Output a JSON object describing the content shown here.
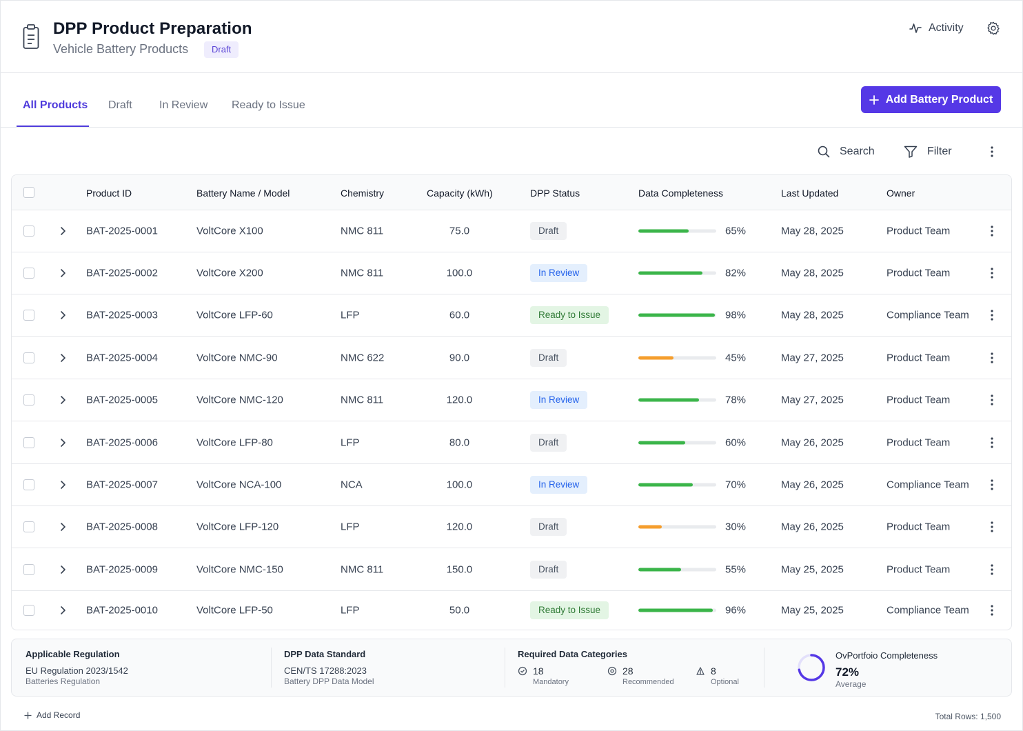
{
  "header": {
    "title": "DPP Product Preparation",
    "subtitle": "Vehicle Battery Products",
    "badge": "Draft",
    "activity_label": "Activity"
  },
  "tabs": [
    {
      "label": "All Products",
      "active": true
    },
    {
      "label": "Draft",
      "active": false
    },
    {
      "label": "In Review",
      "active": false
    },
    {
      "label": "Ready to Issue",
      "active": false
    }
  ],
  "add_button_label": "Add Battery Product",
  "toolbar": {
    "search_label": "Search",
    "filter_label": "Filter"
  },
  "table": {
    "columns": [
      "Product ID",
      "Battery Name / Model",
      "Chemistry",
      "Capacity (kWh)",
      "DPP Status",
      "Data Completeness",
      "Last Updated",
      "Owner"
    ],
    "rows": [
      {
        "id": "BAT-2025-0001",
        "name": "VoltCore X100",
        "chemistry": "NMC 811",
        "capacity": "75.0",
        "status": "Draft",
        "completeness": 65,
        "completeness_label": "65%",
        "updated": "May 28, 2025",
        "owner": "Product Team"
      },
      {
        "id": "BAT-2025-0002",
        "name": "VoltCore X200",
        "chemistry": "NMC 811",
        "capacity": "100.0",
        "status": "In Review",
        "completeness": 82,
        "completeness_label": "82%",
        "updated": "May 28, 2025",
        "owner": "Product Team"
      },
      {
        "id": "BAT-2025-0003",
        "name": "VoltCore LFP-60",
        "chemistry": "LFP",
        "capacity": "60.0",
        "status": "Ready to Issue",
        "completeness": 98,
        "completeness_label": "98%",
        "updated": "May 28, 2025",
        "owner": "Compliance Team"
      },
      {
        "id": "BAT-2025-0004",
        "name": "VoltCore NMC-90",
        "chemistry": "NMC 622",
        "capacity": "90.0",
        "status": "Draft",
        "completeness": 45,
        "completeness_label": "45%",
        "updated": "May 27, 2025",
        "owner": "Product Team"
      },
      {
        "id": "BAT-2025-0005",
        "name": "VoltCore NMC-120",
        "chemistry": "NMC 811",
        "capacity": "120.0",
        "status": "In Review",
        "completeness": 78,
        "completeness_label": "78%",
        "updated": "May 27, 2025",
        "owner": "Product Team"
      },
      {
        "id": "BAT-2025-0006",
        "name": "VoltCore LFP-80",
        "chemistry": "LFP",
        "capacity": "80.0",
        "status": "Draft",
        "completeness": 60,
        "completeness_label": "60%",
        "updated": "May 26, 2025",
        "owner": "Product Team"
      },
      {
        "id": "BAT-2025-0007",
        "name": "VoltCore NCA-100",
        "chemistry": "NCA",
        "capacity": "100.0",
        "status": "In Review",
        "completeness": 70,
        "completeness_label": "70%",
        "updated": "May 26, 2025",
        "owner": "Compliance Team"
      },
      {
        "id": "BAT-2025-0008",
        "name": "VoltCore LFP-120",
        "chemistry": "LFP",
        "capacity": "120.0",
        "status": "Draft",
        "completeness": 30,
        "completeness_label": "30%",
        "updated": "May 26, 2025",
        "owner": "Product Team"
      },
      {
        "id": "BAT-2025-0009",
        "name": "VoltCore NMC-150",
        "chemistry": "NMC 811",
        "capacity": "150.0",
        "status": "Draft",
        "completeness": 55,
        "completeness_label": "55%",
        "updated": "May 25, 2025",
        "owner": "Product Team"
      },
      {
        "id": "BAT-2025-0010",
        "name": "VoltCore LFP-50",
        "chemistry": "LFP",
        "capacity": "50.0",
        "status": "Ready to Issue",
        "completeness": 96,
        "completeness_label": "96%",
        "updated": "May 25, 2025",
        "owner": "Compliance Team"
      }
    ]
  },
  "summary": {
    "regulation": {
      "label": "Applicable Regulation",
      "value": "EU Regulation 2023/1542",
      "sub": "Batteries Regulation"
    },
    "standard": {
      "label": "DPP Data Standard",
      "value": "CEN/TS 17288:2023",
      "sub": "Battery DPP Data Model"
    },
    "categories": {
      "label": "Required Data Categories",
      "items": [
        {
          "count": "18",
          "label": "Mandatory"
        },
        {
          "count": "28",
          "label": "Recommended"
        },
        {
          "count": "8",
          "label": "Optional"
        }
      ]
    },
    "portfolio": {
      "label": "OvPortfoio Completeness",
      "value": "72%",
      "sub": "Average",
      "fraction": 0.72
    }
  },
  "footer": {
    "add_record_label": "Add Record",
    "total_rows": "Total Rows: 1,500"
  },
  "colors": {
    "accent": "#5538e6",
    "progress_green": "#3bb54a",
    "progress_orange": "#f59e2d"
  }
}
